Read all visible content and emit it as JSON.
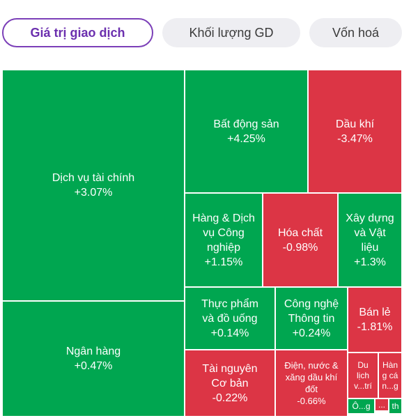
{
  "tabs": [
    {
      "label": "Giá trị giao dịch",
      "active": true
    },
    {
      "label": "Khối lượng GD",
      "active": false
    },
    {
      "label": "Vốn hoá",
      "active": false
    }
  ],
  "colors": {
    "up": "#00a650",
    "down": "#dc3545",
    "accent": "#6b2fae"
  },
  "sectors": [
    {
      "name": "Dịch vụ tài chính",
      "change": "+3.07%",
      "trend": "up"
    },
    {
      "name": "Ngân hàng",
      "change": "+0.47%",
      "trend": "up"
    },
    {
      "name": "Bất động sản",
      "change": "+4.25%",
      "trend": "up"
    },
    {
      "name": "Dầu khí",
      "change": "-3.47%",
      "trend": "down"
    },
    {
      "name": "Hàng & Dịch\nvụ Công\nnghiệp",
      "change": "+1.15%",
      "trend": "up"
    },
    {
      "name": "Hóa chất",
      "change": "-0.98%",
      "trend": "down"
    },
    {
      "name": "Xây dựng\nvà Vật\nliệu",
      "change": "+1.3%",
      "trend": "up"
    },
    {
      "name": "Thực phẩm\nvà đồ uống",
      "change": "+0.14%",
      "trend": "up"
    },
    {
      "name": "Công nghệ\nThông tin",
      "change": "+0.24%",
      "trend": "up"
    },
    {
      "name": "Bán lẻ",
      "change": "-1.81%",
      "trend": "down"
    },
    {
      "name": "Tài nguyên\nCơ bản",
      "change": "-0.22%",
      "trend": "down"
    },
    {
      "name": "Điện, nước &\nxăng dầu khí\nđốt",
      "change": "-0.66%",
      "trend": "down"
    },
    {
      "name": "Du\nlịch\nv...trí",
      "change": "",
      "trend": "down"
    },
    {
      "name": "Hàn\ng cá\nn...g",
      "change": "",
      "trend": "down"
    },
    {
      "name": "...",
      "change": "",
      "trend": "down"
    },
    {
      "name": "Ô...g",
      "change": "",
      "trend": "up"
    },
    {
      "name": "th",
      "change": "",
      "trend": "up"
    }
  ]
}
